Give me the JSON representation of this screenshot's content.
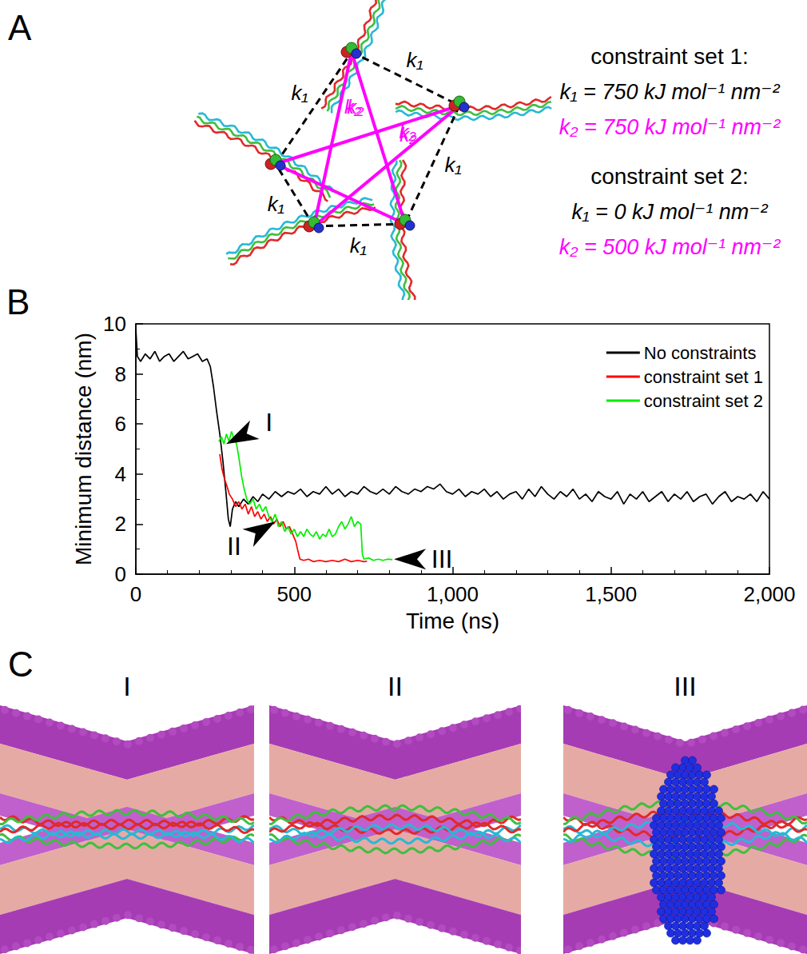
{
  "panel_labels": [
    "A",
    "B",
    "C"
  ],
  "diagram": {
    "k1": "k₁",
    "k2": "k₂",
    "constraint_sets": [
      {
        "title": "constraint set 1:",
        "k1_text": "k₁ = 750 kJ mol⁻¹ nm⁻²",
        "k2_text": "k₂ = 750 kJ mol⁻¹ nm⁻²"
      },
      {
        "title": "constraint set 2:",
        "k1_text": "k₁ = 0 kJ mol⁻¹ nm⁻²",
        "k2_text": "k₂ = 500 kJ mol⁻¹ nm⁻²"
      }
    ]
  },
  "chart_data": {
    "type": "line",
    "x_label": "Time (ns)",
    "y_label": "Minimum distance (nm)",
    "xlim": [
      0,
      2000
    ],
    "xticks": [
      0,
      500,
      1000,
      1500,
      2000
    ],
    "ylim": [
      0,
      10
    ],
    "yticks": [
      0,
      2,
      4,
      6,
      8,
      10
    ],
    "grid": false,
    "legend": "upper right",
    "series": [
      {
        "name": "No constraints",
        "color": "#000000",
        "x": [
          0,
          5,
          15,
          30,
          45,
          60,
          75,
          90,
          105,
          120,
          135,
          150,
          165,
          180,
          195,
          210,
          225,
          235,
          245,
          255,
          265,
          275,
          285,
          292,
          298,
          305,
          315,
          325,
          340,
          355,
          370,
          385,
          400,
          420,
          440,
          460,
          480,
          500,
          520,
          540,
          560,
          580,
          600,
          620,
          640,
          660,
          680,
          700,
          720,
          740,
          760,
          780,
          800,
          820,
          840,
          860,
          880,
          900,
          920,
          940,
          960,
          980,
          1000,
          1020,
          1040,
          1060,
          1080,
          1100,
          1120,
          1140,
          1160,
          1180,
          1200,
          1220,
          1240,
          1260,
          1280,
          1300,
          1320,
          1340,
          1360,
          1380,
          1400,
          1420,
          1440,
          1460,
          1480,
          1500,
          1520,
          1540,
          1560,
          1580,
          1600,
          1620,
          1640,
          1660,
          1680,
          1700,
          1720,
          1740,
          1760,
          1780,
          1800,
          1820,
          1840,
          1860,
          1880,
          1900,
          1920,
          1940,
          1960,
          1980,
          2000
        ],
        "values": [
          9.8,
          8.7,
          8.5,
          8.8,
          8.6,
          8.9,
          8.5,
          8.7,
          8.8,
          8.5,
          8.7,
          8.9,
          8.6,
          8.7,
          8.8,
          8.5,
          8.6,
          8.3,
          7.5,
          6.5,
          5.6,
          4.5,
          3.2,
          2.2,
          1.9,
          2.6,
          2.9,
          2.7,
          3.0,
          2.8,
          3.1,
          2.9,
          3.2,
          3.0,
          3.3,
          3.1,
          3.3,
          3.2,
          3.4,
          3.1,
          3.3,
          3.2,
          3.5,
          3.2,
          3.4,
          3.1,
          3.3,
          3.2,
          3.5,
          3.3,
          3.2,
          3.4,
          3.2,
          3.5,
          3.3,
          3.2,
          3.4,
          3.3,
          3.5,
          3.4,
          3.6,
          3.3,
          3.2,
          3.4,
          3.1,
          3.3,
          3.2,
          3.4,
          3.1,
          3.3,
          3.0,
          3.2,
          3.3,
          3.0,
          3.4,
          3.1,
          3.5,
          3.2,
          3.0,
          3.3,
          3.1,
          3.4,
          3.0,
          3.2,
          2.9,
          3.3,
          3.1,
          3.0,
          3.3,
          2.8,
          3.2,
          3.0,
          3.3,
          2.9,
          3.1,
          3.3,
          2.9,
          3.2,
          3.0,
          3.3,
          2.9,
          3.1,
          3.2,
          2.8,
          3.1,
          3.3,
          2.9,
          3.1,
          3.0,
          3.2,
          2.9,
          3.3,
          3.0
        ]
      },
      {
        "name": "constraint set 1",
        "color": "#ff0000",
        "x": [
          265,
          272,
          280,
          288,
          295,
          305,
          315,
          325,
          335,
          345,
          355,
          365,
          375,
          385,
          395,
          405,
          415,
          425,
          435,
          445,
          455,
          465,
          475,
          485,
          495,
          505,
          512,
          518,
          530,
          545,
          560,
          580,
          600,
          620,
          640,
          660,
          680,
          700,
          720,
          730
        ],
        "values": [
          4.8,
          4.2,
          3.8,
          3.5,
          3.2,
          3.0,
          2.7,
          2.9,
          2.6,
          2.8,
          2.4,
          2.7,
          2.3,
          2.5,
          2.2,
          2.4,
          2.1,
          2.3,
          2.0,
          2.2,
          1.9,
          2.1,
          1.8,
          1.9,
          1.6,
          1.3,
          0.9,
          0.6,
          0.55,
          0.6,
          0.5,
          0.55,
          0.5,
          0.55,
          0.5,
          0.6,
          0.5,
          0.55,
          0.5,
          0.52
        ]
      },
      {
        "name": "constraint set 2",
        "color": "#00ee00",
        "x": [
          262,
          270,
          278,
          286,
          294,
          302,
          310,
          318,
          326,
          334,
          342,
          350,
          360,
          370,
          380,
          390,
          400,
          410,
          420,
          430,
          440,
          450,
          460,
          470,
          480,
          490,
          500,
          510,
          520,
          530,
          540,
          550,
          560,
          570,
          580,
          590,
          600,
          610,
          620,
          630,
          640,
          650,
          660,
          670,
          680,
          690,
          700,
          710,
          715,
          720,
          735,
          750,
          765,
          780,
          795,
          810
        ],
        "values": [
          5.3,
          5.5,
          5.2,
          5.6,
          5.3,
          5.7,
          5.4,
          5.2,
          4.6,
          3.9,
          3.4,
          3.0,
          2.8,
          3.0,
          2.6,
          2.8,
          2.5,
          2.7,
          2.3,
          2.1,
          2.4,
          1.9,
          2.1,
          1.7,
          1.9,
          1.6,
          1.8,
          1.5,
          1.7,
          1.5,
          1.8,
          1.6,
          1.5,
          1.7,
          1.4,
          1.6,
          1.5,
          1.8,
          1.5,
          1.6,
          1.9,
          2.1,
          1.8,
          2.0,
          2.3,
          1.9,
          2.1,
          2.0,
          0.8,
          0.6,
          0.65,
          0.55,
          0.6,
          0.55,
          0.6,
          0.58
        ]
      }
    ],
    "annotations": [
      {
        "text": "I",
        "x": 285,
        "y": 5.2
      },
      {
        "text": "II",
        "x": 440,
        "y": 2.1
      },
      {
        "text": "III",
        "x": 815,
        "y": 0.6
      }
    ]
  },
  "snapshots": {
    "labels": [
      "I",
      "II",
      "III"
    ]
  }
}
